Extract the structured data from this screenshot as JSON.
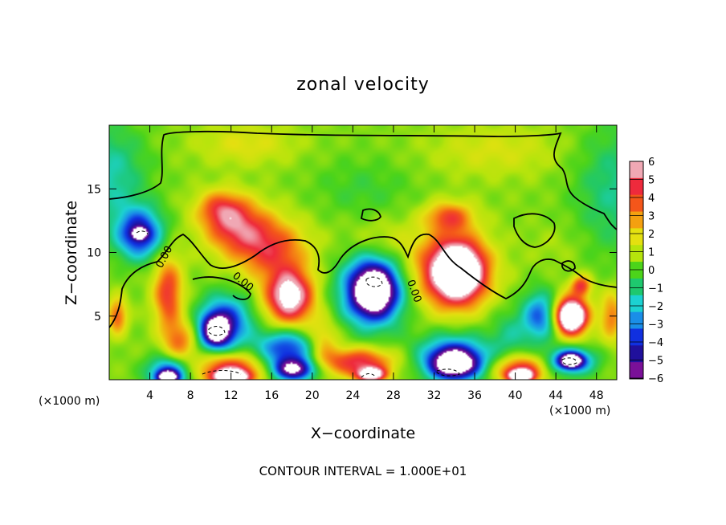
{
  "chart_data": {
    "type": "heatmap",
    "title": "zonal velocity",
    "xlabel": "X−coordinate",
    "ylabel": "Z−coordinate",
    "x_unit": "(×1000 m)",
    "y_unit": "(×1000 m)",
    "x_ticks": [
      4,
      8,
      12,
      16,
      20,
      24,
      28,
      32,
      36,
      40,
      44,
      48
    ],
    "y_ticks": [
      5,
      10,
      15
    ],
    "xlim": [
      0,
      50
    ],
    "ylim": [
      0,
      20
    ],
    "colorbar": {
      "ticks": [
        6,
        5,
        4,
        3,
        2,
        1,
        0,
        -1,
        -2,
        -3,
        -4,
        -5,
        -6
      ],
      "tick_labels": [
        "6",
        "5",
        "4",
        "3",
        "2",
        "1",
        "0",
        "−1",
        "−2",
        "−3",
        "−4",
        "−5",
        "−6"
      ],
      "colors": [
        "#f0a8b4",
        "#ee2a3c",
        "#f4561a",
        "#f4a010",
        "#e4e010",
        "#b6e40c",
        "#4cd41a",
        "#1ec86e",
        "#1cd2d2",
        "#1a8ee8",
        "#1030e0",
        "#20109c",
        "#7a1098"
      ]
    },
    "contour_label": "0.00",
    "footer": "CONTOUR INTERVAL = 1.000E+01",
    "field_blobs": [
      {
        "x": 3.0,
        "z": 11.5,
        "rx": 2.8,
        "rz": 2.4,
        "v": -5.5
      },
      {
        "x": 3.0,
        "z": 11.5,
        "rx": 0.8,
        "rz": 0.5,
        "v": -7.0
      },
      {
        "x": 0.8,
        "z": 5.0,
        "rx": 1.2,
        "rz": 1.8,
        "v": 3.5
      },
      {
        "x": 5.8,
        "z": 6.8,
        "rx": 1.8,
        "rz": 3.6,
        "v": 4.2
      },
      {
        "x": 7.0,
        "z": 3.0,
        "rx": 2.0,
        "rz": 2.0,
        "v": 3.0
      },
      {
        "x": 11.5,
        "z": 4.6,
        "rx": 3.2,
        "rz": 2.6,
        "v": -4.6
      },
      {
        "x": 10.5,
        "z": 3.8,
        "rx": 1.8,
        "rz": 1.6,
        "v": -7.0
      },
      {
        "x": 5.8,
        "z": 0.5,
        "rx": 2.5,
        "rz": 1.6,
        "v": -4.8
      },
      {
        "x": 5.8,
        "z": 0.2,
        "rx": 1.2,
        "rz": 0.6,
        "v": -7.0
      },
      {
        "x": 12.0,
        "z": 0.8,
        "rx": 3.8,
        "rz": 1.6,
        "v": 4.8
      },
      {
        "x": 12.0,
        "z": 0.2,
        "rx": 2.2,
        "rz": 0.7,
        "v": 7.0
      },
      {
        "x": 17.5,
        "z": 2.5,
        "rx": 3.8,
        "rz": 1.8,
        "v": -4.6
      },
      {
        "x": 18.2,
        "z": 0.8,
        "rx": 2.6,
        "rz": 1.1,
        "v": -7.0
      },
      {
        "x": 17.8,
        "z": 6.5,
        "rx": 2.9,
        "rz": 2.6,
        "v": 7.0
      },
      {
        "x": 16.0,
        "z": 10.2,
        "rx": 4.5,
        "rz": 3.0,
        "v": 3.8
      },
      {
        "x": 12.5,
        "z": 12.0,
        "rx": 4.0,
        "rz": 2.6,
        "v": 4.0
      },
      {
        "x": 11.0,
        "z": 13.5,
        "rx": 3.0,
        "rz": 1.8,
        "v": 3.0
      },
      {
        "x": 21.0,
        "z": 3.0,
        "rx": 2.0,
        "rz": 2.2,
        "v": 2.5
      },
      {
        "x": 24.5,
        "z": 1.4,
        "rx": 4.5,
        "rz": 1.4,
        "v": 4.6
      },
      {
        "x": 25.8,
        "z": 0.4,
        "rx": 1.8,
        "rz": 0.7,
        "v": 7.0
      },
      {
        "x": 26.0,
        "z": 7.0,
        "rx": 4.2,
        "rz": 3.6,
        "v": -4.8
      },
      {
        "x": 26.0,
        "z": 7.0,
        "rx": 2.6,
        "rz": 2.4,
        "v": -7.0
      },
      {
        "x": 27.0,
        "z": 11.0,
        "rx": 4.5,
        "rz": 2.2,
        "v": 1.0
      },
      {
        "x": 33.5,
        "z": 8.5,
        "rx": 4.8,
        "rz": 3.6,
        "v": 4.8
      },
      {
        "x": 34.5,
        "z": 8.5,
        "rx": 3.0,
        "rz": 2.8,
        "v": 7.0
      },
      {
        "x": 33.5,
        "z": 12.8,
        "rx": 3.0,
        "rz": 1.5,
        "v": 3.5
      },
      {
        "x": 34.0,
        "z": 1.8,
        "rx": 4.4,
        "rz": 2.2,
        "v": -4.6
      },
      {
        "x": 34.0,
        "z": 1.2,
        "rx": 2.8,
        "rz": 1.4,
        "v": -7.0
      },
      {
        "x": 39.5,
        "z": 3.5,
        "rx": 2.4,
        "rz": 2.5,
        "v": -1.6
      },
      {
        "x": 40.5,
        "z": 0.8,
        "rx": 3.2,
        "rz": 1.4,
        "v": 4.6
      },
      {
        "x": 40.5,
        "z": 0.3,
        "rx": 1.5,
        "rz": 0.6,
        "v": 7.0
      },
      {
        "x": 42.5,
        "z": 5.0,
        "rx": 2.2,
        "rz": 2.4,
        "v": -4.2
      },
      {
        "x": 45.5,
        "z": 5.0,
        "rx": 2.4,
        "rz": 2.2,
        "v": 4.6
      },
      {
        "x": 45.5,
        "z": 5.0,
        "rx": 1.6,
        "rz": 1.4,
        "v": 7.0
      },
      {
        "x": 46.5,
        "z": 7.4,
        "rx": 1.2,
        "rz": 1.0,
        "v": 4.0
      },
      {
        "x": 45.5,
        "z": 1.5,
        "rx": 3.0,
        "rz": 1.4,
        "v": -4.5
      },
      {
        "x": 45.5,
        "z": 1.5,
        "rx": 1.4,
        "rz": 0.7,
        "v": -7.0
      },
      {
        "x": 49.5,
        "z": 5.0,
        "rx": 1.4,
        "rz": 2.5,
        "v": 3.0
      },
      {
        "x": 44.0,
        "z": 10.5,
        "rx": 3.5,
        "rz": 2.0,
        "v": 0.4
      },
      {
        "x": 13.5,
        "z": 18.5,
        "rx": 6.0,
        "rz": 2.0,
        "v": 1.4
      },
      {
        "x": 38.0,
        "z": 18.0,
        "rx": 8.0,
        "rz": 2.5,
        "v": 1.2
      }
    ]
  }
}
